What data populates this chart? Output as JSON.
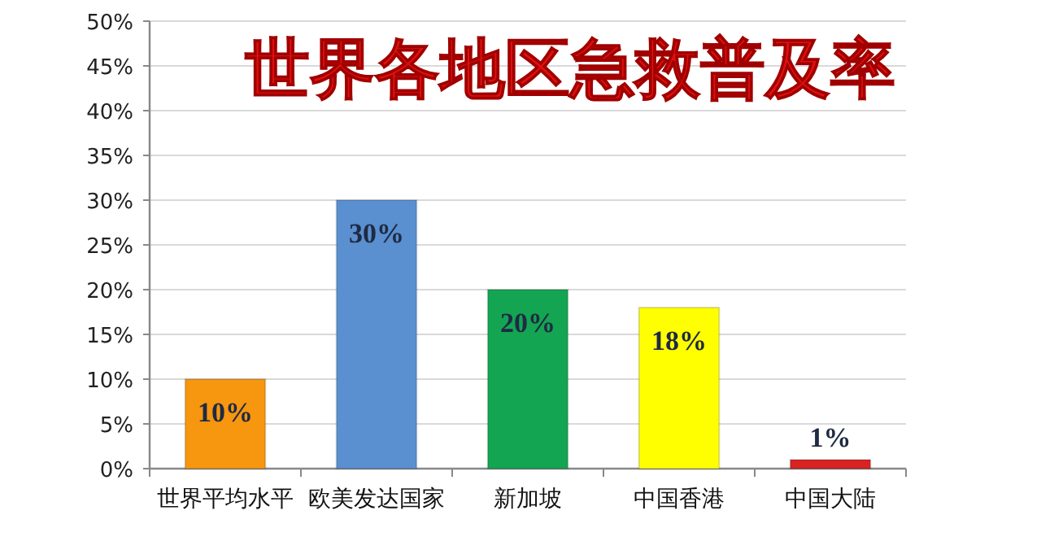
{
  "chart_data": {
    "type": "bar",
    "title": "世界各地区急救普及率",
    "categories": [
      "世界平均水平",
      "欧美发达国家",
      "新加坡",
      "中国香港",
      "中国大陆"
    ],
    "values": [
      10,
      30,
      20,
      18,
      1
    ],
    "colors": [
      "#f7960f",
      "#5a8fd0",
      "#13a552",
      "#ffff00",
      "#d92222"
    ],
    "value_labels": [
      "10%",
      "30%",
      "20%",
      "18%",
      "1%"
    ],
    "ylim": [
      0,
      50
    ],
    "yticks": [
      {
        "value": 0,
        "label": "0%"
      },
      {
        "value": 5,
        "label": "5%"
      },
      {
        "value": 10,
        "label": "10%"
      },
      {
        "value": 15,
        "label": "15%"
      },
      {
        "value": 20,
        "label": "20%"
      },
      {
        "value": 25,
        "label": "25%"
      },
      {
        "value": 30,
        "label": "30%"
      },
      {
        "value": 35,
        "label": "35%"
      },
      {
        "value": 40,
        "label": "40%"
      },
      {
        "value": 45,
        "label": "45%"
      },
      {
        "value": 50,
        "label": "50%"
      }
    ],
    "grid": "y"
  }
}
